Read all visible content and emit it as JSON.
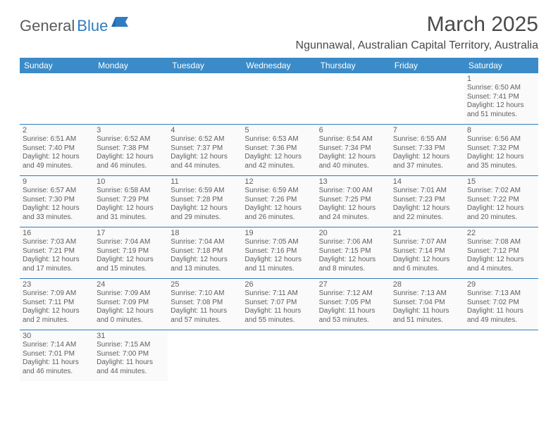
{
  "logo": {
    "general": "General",
    "blue": "Blue"
  },
  "title": "March 2025",
  "location": "Ngunnawal, Australian Capital Territory, Australia",
  "colors": {
    "header_bg": "#3b8bc8",
    "header_text": "#ffffff",
    "rule": "#2f7dc0",
    "body_text": "#606060",
    "title_text": "#4a4a4a",
    "logo_gray": "#5b5b5b",
    "logo_blue": "#2f7dc0",
    "cell_bg": "#fafafa",
    "page_bg": "#ffffff"
  },
  "day_headers": [
    "Sunday",
    "Monday",
    "Tuesday",
    "Wednesday",
    "Thursday",
    "Friday",
    "Saturday"
  ],
  "weeks": [
    [
      null,
      null,
      null,
      null,
      null,
      null,
      {
        "n": "1",
        "sr": "Sunrise: 6:50 AM",
        "ss": "Sunset: 7:41 PM",
        "d1": "Daylight: 12 hours",
        "d2": "and 51 minutes."
      }
    ],
    [
      {
        "n": "2",
        "sr": "Sunrise: 6:51 AM",
        "ss": "Sunset: 7:40 PM",
        "d1": "Daylight: 12 hours",
        "d2": "and 49 minutes."
      },
      {
        "n": "3",
        "sr": "Sunrise: 6:52 AM",
        "ss": "Sunset: 7:38 PM",
        "d1": "Daylight: 12 hours",
        "d2": "and 46 minutes."
      },
      {
        "n": "4",
        "sr": "Sunrise: 6:52 AM",
        "ss": "Sunset: 7:37 PM",
        "d1": "Daylight: 12 hours",
        "d2": "and 44 minutes."
      },
      {
        "n": "5",
        "sr": "Sunrise: 6:53 AM",
        "ss": "Sunset: 7:36 PM",
        "d1": "Daylight: 12 hours",
        "d2": "and 42 minutes."
      },
      {
        "n": "6",
        "sr": "Sunrise: 6:54 AM",
        "ss": "Sunset: 7:34 PM",
        "d1": "Daylight: 12 hours",
        "d2": "and 40 minutes."
      },
      {
        "n": "7",
        "sr": "Sunrise: 6:55 AM",
        "ss": "Sunset: 7:33 PM",
        "d1": "Daylight: 12 hours",
        "d2": "and 37 minutes."
      },
      {
        "n": "8",
        "sr": "Sunrise: 6:56 AM",
        "ss": "Sunset: 7:32 PM",
        "d1": "Daylight: 12 hours",
        "d2": "and 35 minutes."
      }
    ],
    [
      {
        "n": "9",
        "sr": "Sunrise: 6:57 AM",
        "ss": "Sunset: 7:30 PM",
        "d1": "Daylight: 12 hours",
        "d2": "and 33 minutes."
      },
      {
        "n": "10",
        "sr": "Sunrise: 6:58 AM",
        "ss": "Sunset: 7:29 PM",
        "d1": "Daylight: 12 hours",
        "d2": "and 31 minutes."
      },
      {
        "n": "11",
        "sr": "Sunrise: 6:59 AM",
        "ss": "Sunset: 7:28 PM",
        "d1": "Daylight: 12 hours",
        "d2": "and 29 minutes."
      },
      {
        "n": "12",
        "sr": "Sunrise: 6:59 AM",
        "ss": "Sunset: 7:26 PM",
        "d1": "Daylight: 12 hours",
        "d2": "and 26 minutes."
      },
      {
        "n": "13",
        "sr": "Sunrise: 7:00 AM",
        "ss": "Sunset: 7:25 PM",
        "d1": "Daylight: 12 hours",
        "d2": "and 24 minutes."
      },
      {
        "n": "14",
        "sr": "Sunrise: 7:01 AM",
        "ss": "Sunset: 7:23 PM",
        "d1": "Daylight: 12 hours",
        "d2": "and 22 minutes."
      },
      {
        "n": "15",
        "sr": "Sunrise: 7:02 AM",
        "ss": "Sunset: 7:22 PM",
        "d1": "Daylight: 12 hours",
        "d2": "and 20 minutes."
      }
    ],
    [
      {
        "n": "16",
        "sr": "Sunrise: 7:03 AM",
        "ss": "Sunset: 7:21 PM",
        "d1": "Daylight: 12 hours",
        "d2": "and 17 minutes."
      },
      {
        "n": "17",
        "sr": "Sunrise: 7:04 AM",
        "ss": "Sunset: 7:19 PM",
        "d1": "Daylight: 12 hours",
        "d2": "and 15 minutes."
      },
      {
        "n": "18",
        "sr": "Sunrise: 7:04 AM",
        "ss": "Sunset: 7:18 PM",
        "d1": "Daylight: 12 hours",
        "d2": "and 13 minutes."
      },
      {
        "n": "19",
        "sr": "Sunrise: 7:05 AM",
        "ss": "Sunset: 7:16 PM",
        "d1": "Daylight: 12 hours",
        "d2": "and 11 minutes."
      },
      {
        "n": "20",
        "sr": "Sunrise: 7:06 AM",
        "ss": "Sunset: 7:15 PM",
        "d1": "Daylight: 12 hours",
        "d2": "and 8 minutes."
      },
      {
        "n": "21",
        "sr": "Sunrise: 7:07 AM",
        "ss": "Sunset: 7:14 PM",
        "d1": "Daylight: 12 hours",
        "d2": "and 6 minutes."
      },
      {
        "n": "22",
        "sr": "Sunrise: 7:08 AM",
        "ss": "Sunset: 7:12 PM",
        "d1": "Daylight: 12 hours",
        "d2": "and 4 minutes."
      }
    ],
    [
      {
        "n": "23",
        "sr": "Sunrise: 7:09 AM",
        "ss": "Sunset: 7:11 PM",
        "d1": "Daylight: 12 hours",
        "d2": "and 2 minutes."
      },
      {
        "n": "24",
        "sr": "Sunrise: 7:09 AM",
        "ss": "Sunset: 7:09 PM",
        "d1": "Daylight: 12 hours",
        "d2": "and 0 minutes."
      },
      {
        "n": "25",
        "sr": "Sunrise: 7:10 AM",
        "ss": "Sunset: 7:08 PM",
        "d1": "Daylight: 11 hours",
        "d2": "and 57 minutes."
      },
      {
        "n": "26",
        "sr": "Sunrise: 7:11 AM",
        "ss": "Sunset: 7:07 PM",
        "d1": "Daylight: 11 hours",
        "d2": "and 55 minutes."
      },
      {
        "n": "27",
        "sr": "Sunrise: 7:12 AM",
        "ss": "Sunset: 7:05 PM",
        "d1": "Daylight: 11 hours",
        "d2": "and 53 minutes."
      },
      {
        "n": "28",
        "sr": "Sunrise: 7:13 AM",
        "ss": "Sunset: 7:04 PM",
        "d1": "Daylight: 11 hours",
        "d2": "and 51 minutes."
      },
      {
        "n": "29",
        "sr": "Sunrise: 7:13 AM",
        "ss": "Sunset: 7:02 PM",
        "d1": "Daylight: 11 hours",
        "d2": "and 49 minutes."
      }
    ],
    [
      {
        "n": "30",
        "sr": "Sunrise: 7:14 AM",
        "ss": "Sunset: 7:01 PM",
        "d1": "Daylight: 11 hours",
        "d2": "and 46 minutes."
      },
      {
        "n": "31",
        "sr": "Sunrise: 7:15 AM",
        "ss": "Sunset: 7:00 PM",
        "d1": "Daylight: 11 hours",
        "d2": "and 44 minutes."
      },
      null,
      null,
      null,
      null,
      null
    ]
  ]
}
